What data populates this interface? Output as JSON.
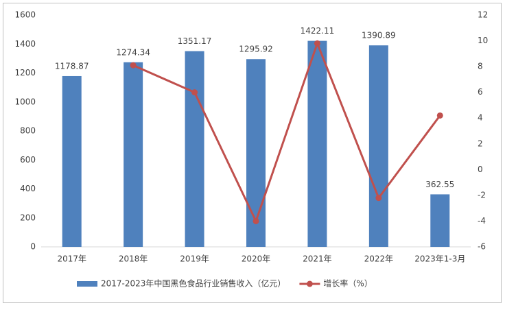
{
  "chart_data": {
    "type": "bar-line",
    "categories": [
      "2017年",
      "2018年",
      "2019年",
      "2020年",
      "2021年",
      "2022年",
      "2023年1-3月"
    ],
    "series": [
      {
        "name": "2017-2023年中国黑色食品行业销售收入（亿元）",
        "type": "bar",
        "color": "#4f81bd",
        "values": [
          1178.87,
          1274.34,
          1351.17,
          1295.92,
          1422.11,
          1390.89,
          362.55
        ]
      },
      {
        "name": "增长率（%）",
        "type": "line",
        "axis": "y2",
        "color": "#c0504d",
        "values": [
          null,
          8.1,
          6.0,
          -4.0,
          9.8,
          -2.2,
          4.2
        ]
      }
    ],
    "ylim": [
      0,
      1600
    ],
    "yticks": [
      0,
      200,
      400,
      600,
      800,
      1000,
      1200,
      1400,
      1600
    ],
    "y2lim": [
      -6,
      12
    ],
    "y2ticks": [
      -6,
      -4,
      -2,
      0,
      2,
      4,
      6,
      8,
      10,
      12
    ],
    "data_labels": true,
    "legend": "bottom"
  }
}
